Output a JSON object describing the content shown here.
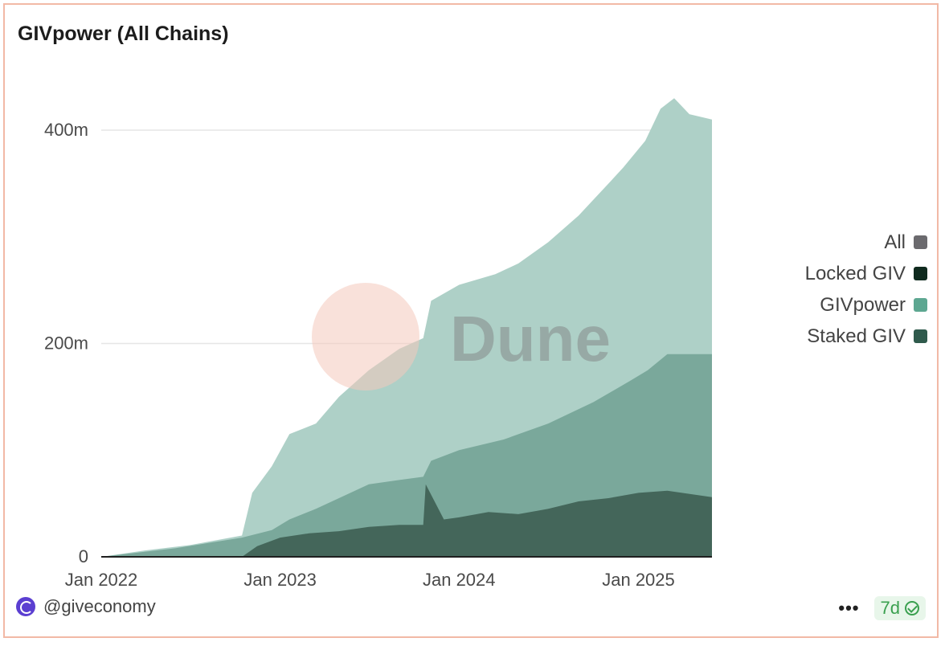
{
  "title": "GIVpower (All Chains)",
  "legend": [
    {
      "label": "All",
      "color": "#6b6a6e"
    },
    {
      "label": "Locked GIV",
      "color": "#0f2a1e"
    },
    {
      "label": "GIVpower",
      "color": "#5da791"
    },
    {
      "label": "Staked GIV",
      "color": "#2f5a4c"
    }
  ],
  "footer": {
    "handle": "@giveconomy",
    "refresh": "7d"
  },
  "watermark": "Dune",
  "chart_data": {
    "type": "area",
    "title": "GIVpower (All Chains)",
    "x_ticks": [
      "Jan 2022",
      "Jan 2023",
      "Jan 2024",
      "Jan 2025"
    ],
    "y_ticks": [
      {
        "value": 0,
        "label": "0"
      },
      {
        "value": 200000000,
        "label": "200m"
      },
      {
        "value": 400000000,
        "label": "400m"
      }
    ],
    "ylim": [
      0,
      400000000
    ],
    "xlim": [
      "2022-01-01",
      "2025-05-31"
    ],
    "grid": true,
    "legend_position": "right",
    "series": [
      {
        "name": "GIVpower",
        "color": "#aed0c7",
        "x": [
          "2022-01-01",
          "2022-04-01",
          "2022-07-01",
          "2022-10-15",
          "2022-11-05",
          "2022-12-15",
          "2023-01-20",
          "2023-03-15",
          "2023-05-01",
          "2023-07-01",
          "2023-09-01",
          "2023-10-20",
          "2023-11-05",
          "2024-01-01",
          "2024-03-15",
          "2024-05-01",
          "2024-07-01",
          "2024-09-01",
          "2024-11-01",
          "2024-12-01",
          "2025-01-15",
          "2025-02-15",
          "2025-03-15",
          "2025-04-15",
          "2025-05-31"
        ],
        "values": [
          0,
          6000000,
          11000000,
          20000000,
          60000000,
          85000000,
          115000000,
          125000000,
          150000000,
          175000000,
          195000000,
          205000000,
          240000000,
          255000000,
          265000000,
          275000000,
          295000000,
          320000000,
          350000000,
          365000000,
          390000000,
          420000000,
          430000000,
          415000000,
          410000000
        ]
      },
      {
        "name": "Staked GIV",
        "color": "#7aa89b",
        "x": [
          "2022-01-01",
          "2022-06-01",
          "2022-10-15",
          "2022-12-15",
          "2023-01-20",
          "2023-03-15",
          "2023-05-01",
          "2023-07-01",
          "2023-09-01",
          "2023-10-20",
          "2023-11-05",
          "2024-01-01",
          "2024-04-01",
          "2024-07-01",
          "2024-10-01",
          "2024-12-15",
          "2025-01-20",
          "2025-03-01",
          "2025-05-31"
        ],
        "values": [
          0,
          8000000,
          18000000,
          25000000,
          35000000,
          45000000,
          55000000,
          68000000,
          72000000,
          75000000,
          90000000,
          100000000,
          110000000,
          125000000,
          145000000,
          165000000,
          175000000,
          190000000,
          190000000
        ]
      },
      {
        "name": "Locked GIV",
        "color": "#44665a",
        "x": [
          "2022-01-01",
          "2022-10-15",
          "2022-11-15",
          "2023-01-01",
          "2023-03-01",
          "2023-05-01",
          "2023-07-01",
          "2023-09-01",
          "2023-10-20",
          "2023-10-25",
          "2023-12-01",
          "2024-01-01",
          "2024-03-01",
          "2024-05-01",
          "2024-07-01",
          "2024-09-01",
          "2024-11-01",
          "2025-01-01",
          "2025-03-01",
          "2025-05-31"
        ],
        "values": [
          0,
          0,
          10000000,
          18000000,
          22000000,
          24000000,
          28000000,
          30000000,
          30000000,
          68000000,
          35000000,
          37000000,
          42000000,
          40000000,
          45000000,
          52000000,
          55000000,
          60000000,
          62000000,
          56000000
        ]
      }
    ]
  }
}
